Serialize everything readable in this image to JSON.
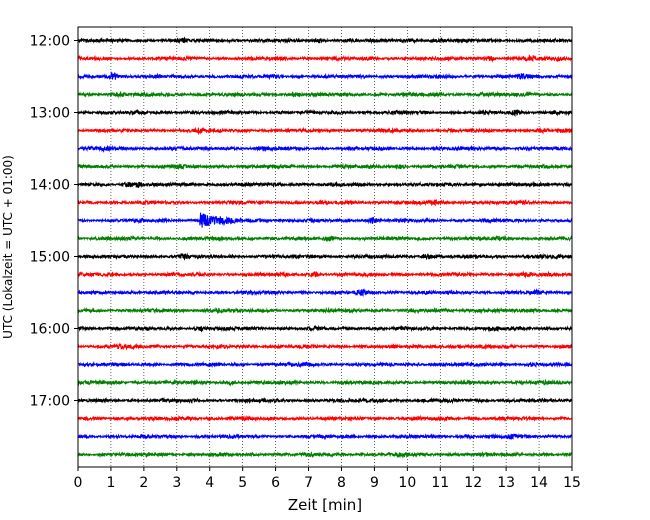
{
  "chart_data": {
    "type": "line",
    "title": "",
    "xlabel": "Zeit  [min]",
    "ylabel": "UTC (Lokalzeit = UTC + 01:00)",
    "xlim": [
      0,
      15
    ],
    "x_ticks": [
      "0",
      "1",
      "2",
      "3",
      "4",
      "5",
      "6",
      "7",
      "8",
      "9",
      "10",
      "11",
      "12",
      "13",
      "14",
      "15"
    ],
    "y_ticks": [
      {
        "label": "12:00",
        "trace": 0
      },
      {
        "label": "13:00",
        "trace": 4
      },
      {
        "label": "14:00",
        "trace": 8
      },
      {
        "label": "15:00",
        "trace": 12
      },
      {
        "label": "16:00",
        "trace": 16
      },
      {
        "label": "17:00",
        "trace": 20
      }
    ],
    "grid": "vertical dotted at each minute",
    "trace_interval_minutes": 15,
    "trace_colors": [
      "#000000",
      "#ff0000",
      "#0000ff",
      "#008000"
    ],
    "traces": [
      {
        "start": "12:00",
        "events": [
          {
            "t": 7.3,
            "amp": 1.6
          },
          {
            "t": 3.2,
            "amp": 1.3
          },
          {
            "t": 10.2,
            "amp": 1.2
          }
        ]
      },
      {
        "start": "12:15",
        "events": [
          {
            "t": 12.5,
            "amp": 2.0
          },
          {
            "t": 13.7,
            "amp": 1.6
          },
          {
            "t": 14.6,
            "amp": 1.8
          }
        ]
      },
      {
        "start": "12:30",
        "events": [
          {
            "t": 1.05,
            "amp": 3.5
          },
          {
            "t": 13.5,
            "amp": 1.8
          },
          {
            "t": 6.0,
            "amp": 1.2
          }
        ]
      },
      {
        "start": "12:45",
        "events": [
          {
            "t": 1.3,
            "amp": 1.6
          },
          {
            "t": 6.6,
            "amp": 1.5
          },
          {
            "t": 12.3,
            "amp": 1.4
          }
        ]
      },
      {
        "start": "13:00",
        "events": [
          {
            "t": 13.3,
            "amp": 1.7
          },
          {
            "t": 14.5,
            "amp": 1.6
          }
        ]
      },
      {
        "start": "13:15",
        "events": [
          {
            "t": 3.7,
            "amp": 1.8
          },
          {
            "t": 14.1,
            "amp": 1.4
          }
        ]
      },
      {
        "start": "13:30",
        "events": [
          {
            "t": 0.8,
            "amp": 1.3
          },
          {
            "t": 5.6,
            "amp": 1.2
          }
        ]
      },
      {
        "start": "13:45",
        "events": [
          {
            "t": 3.1,
            "amp": 1.4
          },
          {
            "t": 9.8,
            "amp": 1.2
          }
        ]
      },
      {
        "start": "14:00",
        "events": [
          {
            "t": 1.5,
            "amp": 1.6
          },
          {
            "t": 1.85,
            "amp": 2.4
          }
        ]
      },
      {
        "start": "14:15",
        "events": [
          {
            "t": 10.8,
            "amp": 1.1
          }
        ]
      },
      {
        "start": "14:30",
        "events": [
          {
            "t": 3.7,
            "amp": 7.0,
            "decay": 1.3,
            "coda": 4.5
          },
          {
            "t": 8.95,
            "amp": 2.2
          }
        ]
      },
      {
        "start": "14:45",
        "events": [
          {
            "t": 7.6,
            "amp": 1.3
          },
          {
            "t": 12.8,
            "amp": 1.2
          }
        ]
      },
      {
        "start": "15:00",
        "events": [
          {
            "t": 3.2,
            "amp": 1.5
          },
          {
            "t": 10.6,
            "amp": 2.2
          },
          {
            "t": 14.0,
            "amp": 1.5
          }
        ]
      },
      {
        "start": "15:15",
        "events": [
          {
            "t": 7.2,
            "amp": 2.0
          },
          {
            "t": 13.6,
            "amp": 1.4
          }
        ]
      },
      {
        "start": "15:30",
        "events": [
          {
            "t": 8.6,
            "amp": 1.7
          },
          {
            "t": 14.0,
            "amp": 1.3
          }
        ]
      },
      {
        "start": "15:45",
        "events": [
          {
            "t": 12.3,
            "amp": 1.5
          },
          {
            "t": 4.3,
            "amp": 1.2
          }
        ]
      },
      {
        "start": "16:00",
        "events": [
          {
            "t": 12.6,
            "amp": 1.7
          },
          {
            "t": 3.7,
            "amp": 1.2
          }
        ]
      },
      {
        "start": "16:15",
        "events": [
          {
            "t": 1.3,
            "amp": 1.3
          },
          {
            "t": 10.9,
            "amp": 1.2
          }
        ]
      },
      {
        "start": "16:30",
        "events": [
          {
            "t": 7.0,
            "amp": 1.3
          },
          {
            "t": 13.8,
            "amp": 1.2
          }
        ]
      },
      {
        "start": "16:45",
        "events": [
          {
            "t": 4.6,
            "amp": 1.3
          },
          {
            "t": 14.0,
            "amp": 1.2
          }
        ]
      },
      {
        "start": "17:00",
        "events": [
          {
            "t": 9.2,
            "amp": 1.2
          }
        ]
      },
      {
        "start": "17:15",
        "events": [
          {
            "t": 3.5,
            "amp": 1.1
          }
        ]
      },
      {
        "start": "17:30",
        "events": [
          {
            "t": 11.8,
            "amp": 1.3
          },
          {
            "t": 13.2,
            "amp": 1.5
          }
        ]
      },
      {
        "start": "17:45",
        "events": [
          {
            "t": 2.1,
            "amp": 1.1
          },
          {
            "t": 9.9,
            "amp": 1.1
          }
        ]
      }
    ]
  }
}
